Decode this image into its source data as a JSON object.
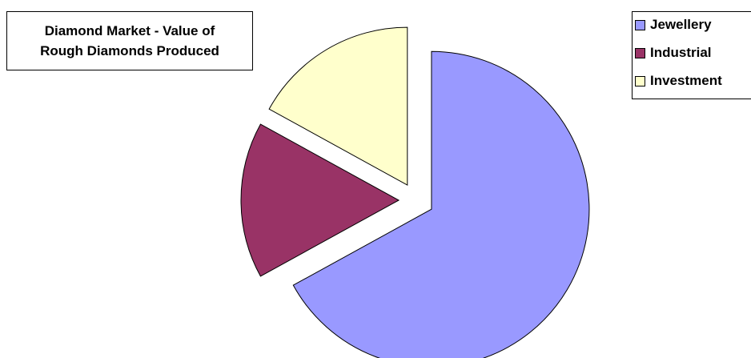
{
  "chart_data": {
    "type": "pie",
    "title_lines": [
      "Diamond Market - Value of",
      "Rough Diamonds Produced"
    ],
    "labels": [
      "Jewellery",
      "Industrial",
      "Investment"
    ],
    "values": [
      67,
      16,
      17
    ],
    "colors": [
      "#9999ff",
      "#993366",
      "#ffffcc"
    ],
    "exploded": true,
    "legend_position": "top-right"
  }
}
